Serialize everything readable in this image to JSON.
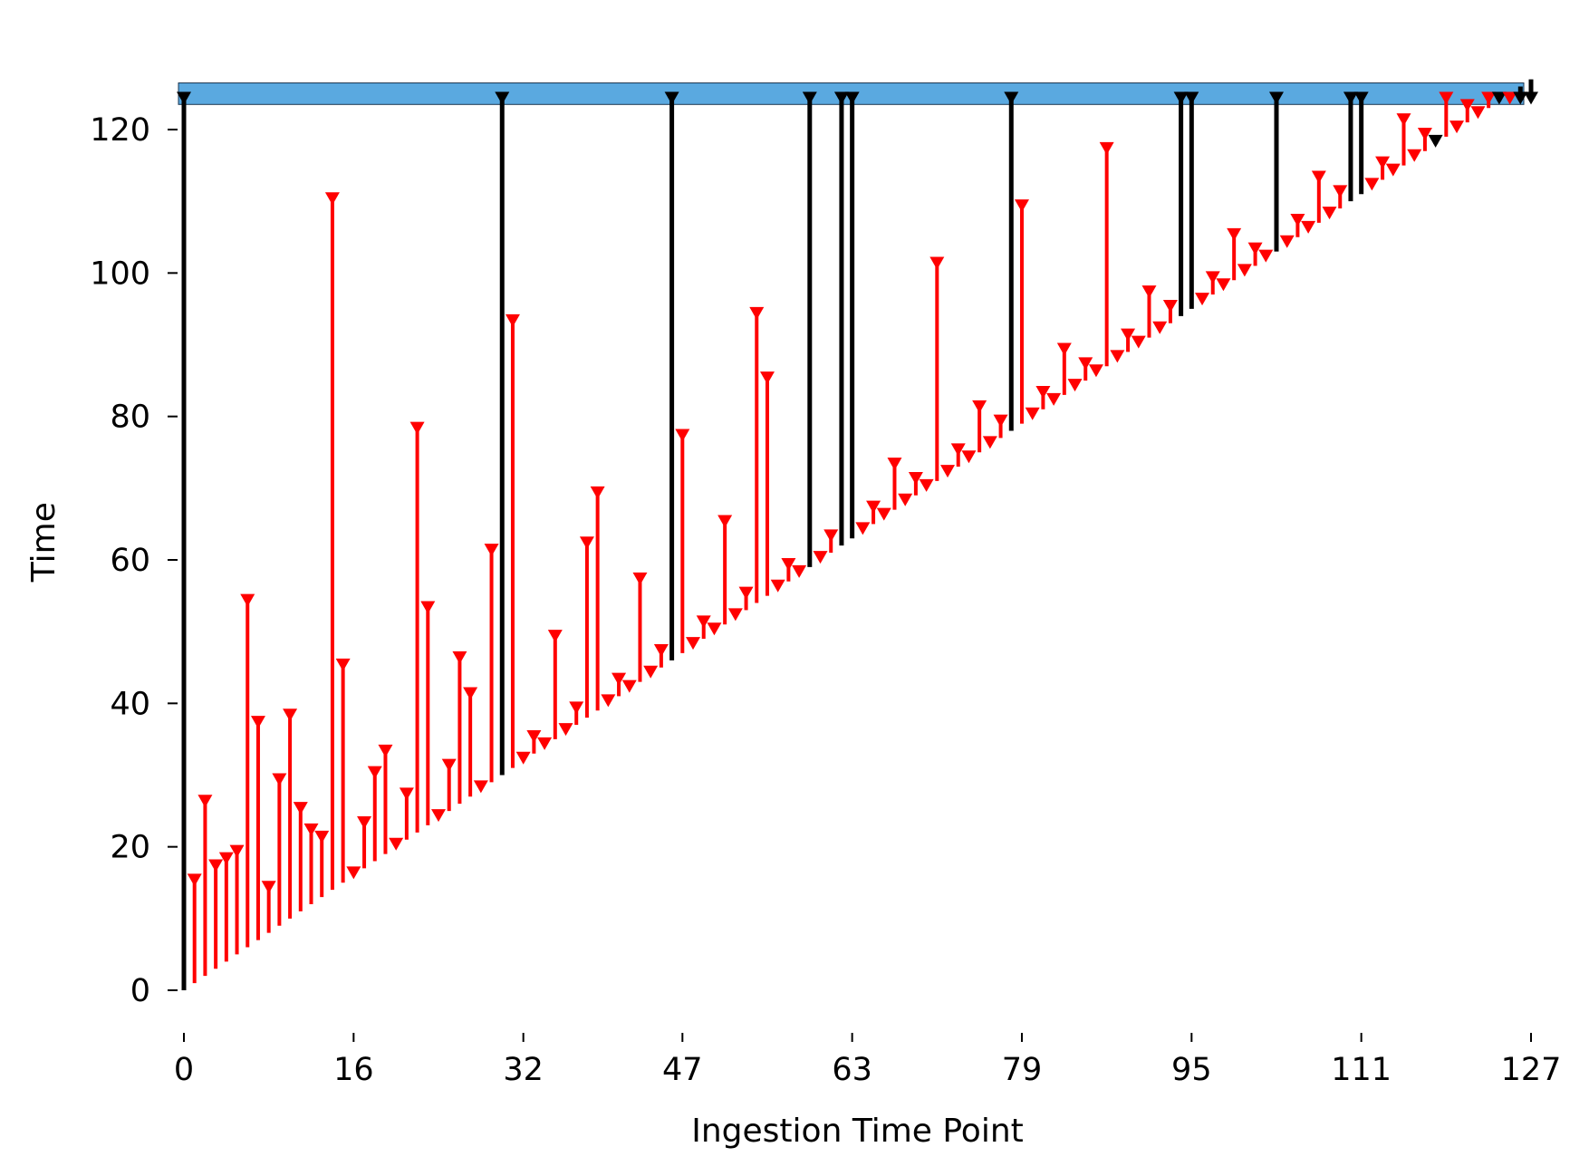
{
  "chart_data": {
    "type": "stem",
    "xlabel": "Ingestion Time Point",
    "ylabel": "Time",
    "xlim": [
      0,
      127
    ],
    "ylim": [
      0,
      125
    ],
    "x_ticks": [
      0,
      16,
      32,
      47,
      63,
      79,
      95,
      111,
      127
    ],
    "y_ticks": [
      0,
      20,
      40,
      60,
      80,
      100,
      120
    ],
    "band": {
      "y_min": 123.5,
      "y_max": 126.5,
      "color": "#5aa9e0"
    },
    "colors": {
      "red": "#ff0000",
      "black": "#000000"
    },
    "x": [
      0,
      1,
      2,
      3,
      4,
      5,
      6,
      7,
      8,
      9,
      10,
      11,
      12,
      13,
      14,
      15,
      16,
      17,
      18,
      19,
      20,
      21,
      22,
      23,
      24,
      25,
      26,
      27,
      28,
      29,
      30,
      31,
      32,
      33,
      34,
      35,
      36,
      37,
      38,
      39,
      40,
      41,
      42,
      43,
      44,
      45,
      46,
      47,
      48,
      49,
      50,
      51,
      52,
      53,
      54,
      55,
      56,
      57,
      58,
      59,
      60,
      61,
      62,
      63,
      64,
      65,
      66,
      67,
      68,
      69,
      70,
      71,
      72,
      73,
      74,
      75,
      76,
      77,
      78,
      79,
      80,
      81,
      82,
      83,
      84,
      85,
      86,
      87,
      88,
      89,
      90,
      91,
      92,
      93,
      94,
      95,
      96,
      97,
      98,
      99,
      100,
      101,
      102,
      103,
      104,
      105,
      106,
      107,
      108,
      109,
      110,
      111,
      112,
      113,
      114,
      115,
      116,
      117,
      118,
      119,
      120,
      121,
      122,
      123,
      124,
      125,
      126,
      127
    ],
    "top": [
      125,
      16,
      27,
      18,
      19,
      20,
      55,
      38,
      15,
      30,
      39,
      26,
      23,
      22,
      111,
      46,
      17,
      24,
      31,
      34,
      21,
      28,
      79,
      54,
      25,
      32,
      47,
      42,
      29,
      62,
      125,
      94,
      33,
      36,
      35,
      50,
      37,
      40,
      63,
      70,
      41,
      44,
      43,
      58,
      45,
      48,
      125,
      78,
      49,
      52,
      51,
      66,
      53,
      56,
      95,
      86,
      57,
      60,
      59,
      125,
      61,
      64,
      125,
      125,
      65,
      68,
      67,
      74,
      69,
      72,
      71,
      102,
      73,
      76,
      75,
      82,
      77,
      80,
      125,
      110,
      81,
      84,
      83,
      90,
      85,
      88,
      87,
      118,
      89,
      92,
      91,
      98,
      93,
      96,
      125,
      125,
      97,
      100,
      99,
      106,
      101,
      104,
      103,
      125,
      105,
      108,
      107,
      114,
      109,
      112,
      125,
      125,
      113,
      116,
      115,
      122,
      117,
      120,
      119,
      125,
      121,
      124,
      123,
      125,
      125,
      125,
      125,
      125
    ],
    "is_black": [
      1,
      0,
      0,
      0,
      0,
      0,
      0,
      0,
      0,
      0,
      0,
      0,
      0,
      0,
      0,
      0,
      0,
      0,
      0,
      0,
      0,
      0,
      0,
      0,
      0,
      0,
      0,
      0,
      0,
      0,
      1,
      0,
      0,
      0,
      0,
      0,
      0,
      0,
      0,
      0,
      0,
      0,
      0,
      0,
      0,
      0,
      1,
      0,
      0,
      0,
      0,
      0,
      0,
      0,
      0,
      0,
      0,
      0,
      0,
      1,
      0,
      0,
      1,
      1,
      0,
      0,
      0,
      0,
      0,
      0,
      0,
      0,
      0,
      0,
      0,
      0,
      0,
      0,
      1,
      0,
      0,
      0,
      0,
      0,
      0,
      0,
      0,
      0,
      0,
      0,
      0,
      0,
      0,
      0,
      1,
      1,
      0,
      0,
      0,
      0,
      0,
      0,
      0,
      1,
      0,
      0,
      0,
      0,
      0,
      0,
      1,
      1,
      0,
      0,
      0,
      0,
      0,
      0,
      1,
      0,
      0,
      0,
      0,
      0,
      1,
      0,
      1,
      1
    ]
  }
}
